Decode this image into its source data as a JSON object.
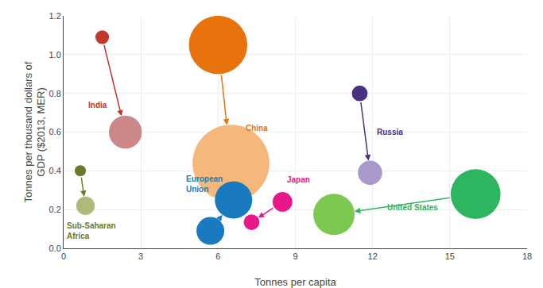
{
  "chart_data": {
    "type": "scatter",
    "xlabel": "Tonnes per capita",
    "ylabel": "Tonnes per thousand dollars of\nGDP ($2013, MER)",
    "xlim": [
      0,
      18
    ],
    "ylim": [
      0,
      1.2
    ],
    "xticks": [
      0,
      3,
      6,
      9,
      12,
      15,
      18
    ],
    "yticks": [
      {
        "value": 0,
        "label": "0.0"
      },
      0.2,
      0.4,
      0.6,
      0.8,
      {
        "value": 1.0,
        "label": "1.0"
      },
      1.2
    ],
    "grid": true,
    "series": [
      {
        "name": "Sub-Saharan\nAfrica",
        "color": "#6b7a2a",
        "colors": [
          "#6b7a2a",
          "#b0b87a"
        ],
        "x": [
          0.65,
          0.85
        ],
        "values": [
          0.4,
          0.22
        ],
        "sizes": [
          80,
          220
        ],
        "label_x": 0.05,
        "label_y": 0.09
      },
      {
        "name": "India",
        "color": "#c0392b",
        "colors": [
          "#c0392b",
          "#cc8888"
        ],
        "x": [
          1.5,
          2.4
        ],
        "values": [
          1.09,
          0.6
        ],
        "sizes": [
          120,
          700
        ],
        "label_x": 0.9,
        "label_y": 0.74
      },
      {
        "name": "China",
        "color": "#e8720c",
        "colors": [
          "#e8720c",
          "#f5b87a"
        ],
        "x": [
          6.0,
          6.5
        ],
        "values": [
          1.05,
          0.44
        ],
        "sizes": [
          2200,
          3800
        ],
        "label_x": 7.0,
        "label_y": 0.62
      },
      {
        "name": "European\nUnion",
        "color": "#1a7abf",
        "colors": [
          "#1a7abf",
          "#1a7abf"
        ],
        "x": [
          5.7,
          6.6
        ],
        "values": [
          0.09,
          0.25
        ],
        "sizes": [
          500,
          900
        ],
        "label_x": 4.7,
        "label_y": 0.33
      },
      {
        "name": "Japan",
        "color": "#e8188a",
        "colors": [
          "#e8188a",
          "#e8188a"
        ],
        "x": [
          8.5,
          7.3
        ],
        "values": [
          0.24,
          0.135
        ],
        "sizes": [
          250,
          160
        ],
        "label_x": 8.6,
        "label_y": 0.355
      },
      {
        "name": "Russia",
        "color": "#4a3080",
        "colors": [
          "#4a3080",
          "#a898cc"
        ],
        "x": [
          11.5,
          11.9
        ],
        "values": [
          0.8,
          0.39
        ],
        "sizes": [
          160,
          380
        ],
        "label_x": 12.1,
        "label_y": 0.6
      },
      {
        "name": "United States",
        "color": "#2db560",
        "colors": [
          "#2db560",
          "#7dc850"
        ],
        "x": [
          16.0,
          10.5
        ],
        "values": [
          0.28,
          0.175
        ],
        "sizes": [
          1600,
          1100
        ],
        "label_x": 12.5,
        "label_y": 0.21
      }
    ]
  }
}
